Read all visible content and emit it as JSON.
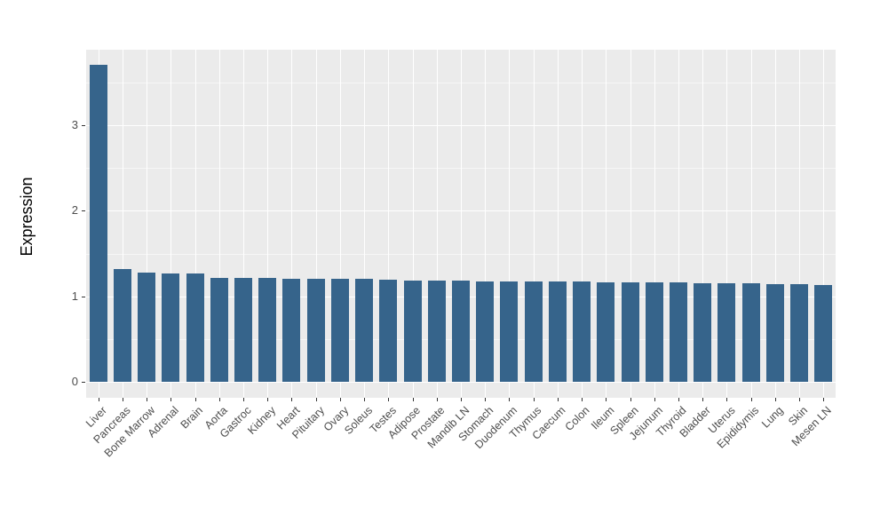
{
  "chart_data": {
    "type": "bar",
    "title": "",
    "xlabel": "",
    "ylabel": "Expression",
    "categories": [
      "Liver",
      "Pancreas",
      "Bone Marrow",
      "Adrenal",
      "Brain",
      "Aorta",
      "Gastroc",
      "Kidney",
      "Heart",
      "Pituitary",
      "Ovary",
      "Soleus",
      "Testes",
      "Adipose",
      "Prostate",
      "Mandib LN",
      "Stomach",
      "Duodenum",
      "Thymus",
      "Caecum",
      "Colon",
      "Ileum",
      "Spleen",
      "Jejunum",
      "Thyroid",
      "Bladder",
      "Uterus",
      "Epididymis",
      "Lung",
      "Skin",
      "Mesen LN"
    ],
    "values": [
      3.71,
      1.32,
      1.28,
      1.27,
      1.27,
      1.22,
      1.21,
      1.21,
      1.2,
      1.2,
      1.2,
      1.2,
      1.19,
      1.18,
      1.18,
      1.18,
      1.17,
      1.17,
      1.17,
      1.17,
      1.17,
      1.16,
      1.16,
      1.16,
      1.16,
      1.15,
      1.15,
      1.15,
      1.14,
      1.14,
      1.13
    ],
    "y_ticks": [
      0,
      1,
      2,
      3
    ],
    "y_minor_ticks": [
      0.5,
      1.5,
      2.5,
      3.5
    ],
    "ylim": [
      -0.19,
      3.88
    ],
    "grid": "major-and-minor-horizontal-plus-category-vertical",
    "legend": "none",
    "style": {
      "bar_color": "#36648B",
      "panel_background": "#EBEBEB",
      "major_gridline_color": "#FFFFFF",
      "minor_gridline_color": "#FFFFFF",
      "axis_text_color": "#4D4D4D",
      "axis_title_color": "#000000"
    }
  }
}
